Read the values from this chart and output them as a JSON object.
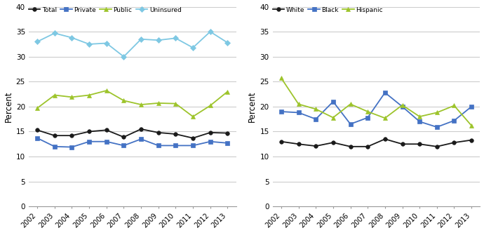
{
  "years": [
    2002,
    2003,
    2004,
    2005,
    2006,
    2007,
    2008,
    2009,
    2010,
    2011,
    2012,
    2013
  ],
  "left": {
    "Total": [
      15.3,
      14.2,
      14.2,
      15.0,
      15.3,
      13.9,
      15.5,
      14.8,
      14.5,
      13.7,
      14.8,
      14.7
    ],
    "Private": [
      13.7,
      12.0,
      11.9,
      13.0,
      13.0,
      12.2,
      13.5,
      12.2,
      12.2,
      12.2,
      13.0,
      12.7
    ],
    "Public": [
      19.7,
      22.3,
      21.9,
      22.3,
      23.2,
      21.2,
      20.4,
      20.7,
      20.6,
      18.0,
      20.2,
      23.0
    ],
    "Uninsured": [
      33.0,
      34.7,
      33.8,
      32.5,
      32.7,
      30.0,
      33.5,
      33.3,
      33.7,
      31.8,
      35.0,
      32.8
    ]
  },
  "right": {
    "White": [
      13.0,
      12.5,
      12.1,
      12.8,
      12.0,
      12.0,
      13.5,
      12.5,
      12.5,
      12.0,
      12.8,
      13.3
    ],
    "Black": [
      19.0,
      18.8,
      17.5,
      21.0,
      16.5,
      17.8,
      22.8,
      20.0,
      17.0,
      15.9,
      17.2,
      20.0
    ],
    "Hispanic": [
      25.7,
      20.5,
      19.5,
      17.8,
      20.5,
      19.0,
      17.7,
      20.3,
      18.0,
      18.8,
      20.2,
      16.2
    ]
  },
  "left_series_styles": {
    "Total": {
      "color": "#1a1a1a",
      "marker": "o",
      "linestyle": "-"
    },
    "Private": {
      "color": "#4472c4",
      "marker": "s",
      "linestyle": "-"
    },
    "Public": {
      "color": "#9dc42b",
      "marker": "^",
      "linestyle": "-"
    },
    "Uninsured": {
      "color": "#7ec8e3",
      "marker": "D",
      "linestyle": "-"
    }
  },
  "right_series_styles": {
    "White": {
      "color": "#1a1a1a",
      "marker": "o",
      "linestyle": "-"
    },
    "Black": {
      "color": "#4472c4",
      "marker": "s",
      "linestyle": "-"
    },
    "Hispanic": {
      "color": "#9dc42b",
      "marker": "^",
      "linestyle": "-"
    }
  },
  "ylabel": "Percent",
  "ylim": [
    0,
    40
  ],
  "yticks": [
    0,
    5,
    10,
    15,
    20,
    25,
    30,
    35,
    40
  ],
  "background_color": "#ffffff",
  "grid_color": "#cccccc"
}
